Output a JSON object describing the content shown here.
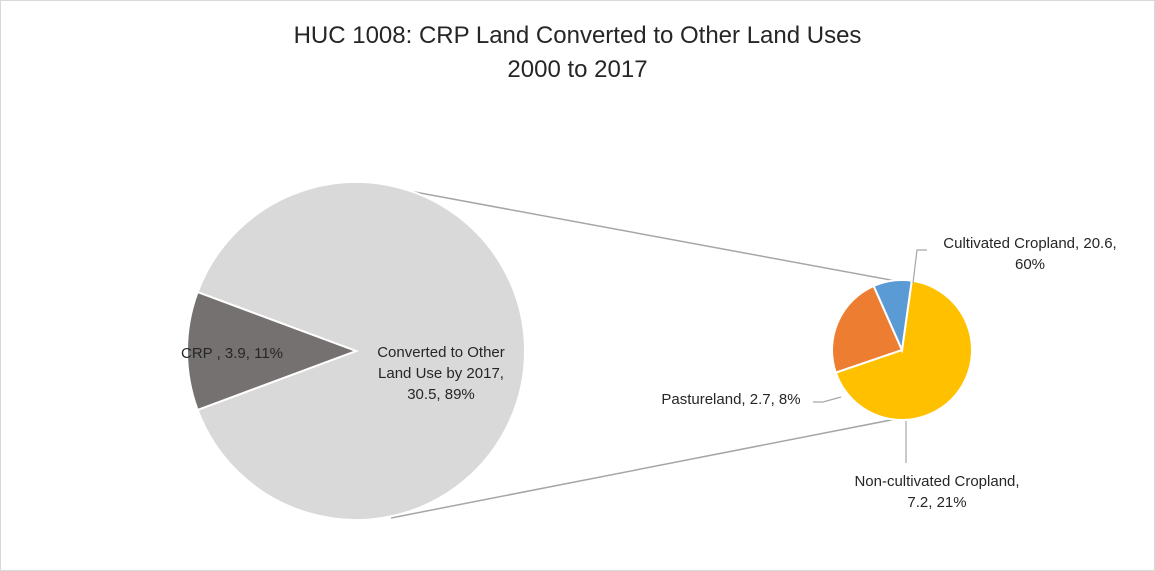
{
  "chart_data": {
    "type": "pie",
    "subtype": "pie-of-pie",
    "title": "HUC 1008: CRP Land Converted to Other Land Uses",
    "subtitle": "2000 to 2017",
    "primary": {
      "slices": [
        {
          "key": "crp",
          "label": "CRP , 3.9, 11%",
          "lines": [
            "CRP , 3.9, 11%"
          ],
          "value": 3.9,
          "percent": 11,
          "color": "#767171"
        },
        {
          "key": "converted",
          "label": "Converted to Other Land Use by 2017, 30.5, 89%",
          "lines": [
            "Converted to Other",
            "Land Use by 2017,",
            "30.5, 89%"
          ],
          "value": 30.5,
          "percent": 89,
          "color": "#d9d9d9"
        }
      ]
    },
    "secondary": {
      "of": "converted",
      "slices": [
        {
          "key": "cultivated",
          "label": "Cultivated Cropland, 20.6, 60%",
          "lines": [
            "Cultivated Cropland, 20.6,",
            "60%"
          ],
          "value": 20.6,
          "percent": 60,
          "color": "#ffc000"
        },
        {
          "key": "noncultivated",
          "label": "Non-cultivated Cropland, 7.2, 21%",
          "lines": [
            "Non-cultivated Cropland,",
            "7.2, 21%"
          ],
          "value": 7.2,
          "percent": 21,
          "color": "#ed7d31"
        },
        {
          "key": "pasture",
          "label": "Pastureland, 2.7, 8%",
          "lines": [
            "Pastureland, 2.7, 8%"
          ],
          "value": 2.7,
          "percent": 8,
          "color": "#5b9bd5"
        }
      ]
    },
    "colors": {
      "connector": "#a6a6a6",
      "leader": "#a6a6a6",
      "text": "#262626",
      "slice_border": "#ffffff"
    }
  }
}
